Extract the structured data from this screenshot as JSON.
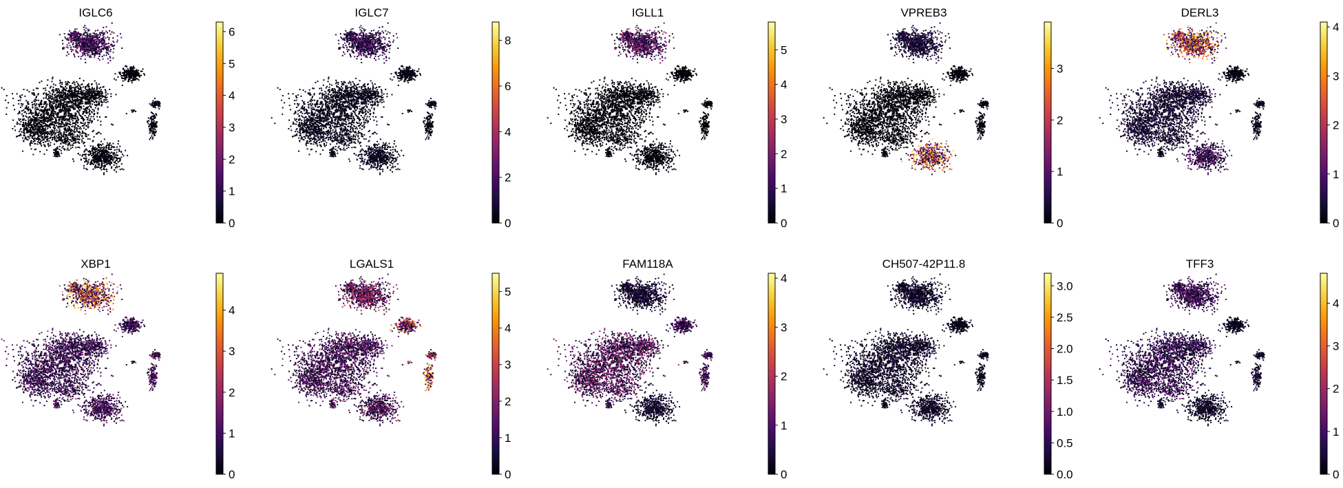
{
  "figure": {
    "title": ""
  },
  "colormap": {
    "name": "inferno",
    "stops": [
      "#000004",
      "#1b0c41",
      "#4a0c6b",
      "#781c6d",
      "#a52c60",
      "#cf4446",
      "#ed6925",
      "#fb9b06",
      "#f7d13d",
      "#fcffa4"
    ]
  },
  "chart_data": [
    {
      "type": "scatter",
      "title": "IGLC6",
      "cluster_levels": {
        "top": 1.6,
        "right": 0.15,
        "mid_right": 0.2,
        "lower_right": 0.2,
        "bottom": 0.15,
        "left_main": 0.12,
        "left_small": 0.1
      },
      "colorbar": {
        "vmin": 0,
        "vmax": 6.3,
        "ticks": [
          0,
          1,
          2,
          3,
          4,
          5,
          6
        ],
        "tick_labels": [
          "0",
          "1",
          "2",
          "3",
          "4",
          "5",
          "6"
        ]
      }
    },
    {
      "type": "scatter",
      "title": "IGLC7",
      "cluster_levels": {
        "top": 1.9,
        "right": 0.4,
        "mid_right": 0.5,
        "lower_right": 0.4,
        "bottom": 0.6,
        "left_main": 0.5,
        "left_small": 0.4
      },
      "colorbar": {
        "vmin": 0,
        "vmax": 8.8,
        "ticks": [
          0,
          2,
          4,
          6,
          8
        ],
        "tick_labels": [
          "0",
          "2",
          "4",
          "6",
          "8"
        ]
      }
    },
    {
      "type": "scatter",
      "title": "IGLL1",
      "cluster_levels": {
        "top": 1.8,
        "right": 0.1,
        "mid_right": 0.1,
        "lower_right": 0.1,
        "bottom": 0.15,
        "left_main": 0.1,
        "left_small": 0.1
      },
      "colorbar": {
        "vmin": 0,
        "vmax": 5.8,
        "ticks": [
          0,
          1,
          2,
          3,
          4,
          5
        ],
        "tick_labels": [
          "0",
          "1",
          "2",
          "3",
          "4",
          "5"
        ]
      }
    },
    {
      "type": "scatter",
      "title": "VPREB3",
      "cluster_levels": {
        "top": 0.5,
        "right": 0.1,
        "mid_right": 0.1,
        "lower_right": 0.1,
        "bottom": 2.7,
        "left_main": 0.08,
        "left_small": 0.1
      },
      "colorbar": {
        "vmin": 0,
        "vmax": 3.9,
        "ticks": [
          0,
          1,
          2,
          3
        ],
        "tick_labels": [
          "0",
          "1",
          "2",
          "3"
        ]
      }
    },
    {
      "type": "scatter",
      "title": "DERL3",
      "cluster_levels": {
        "top": 2.8,
        "right": 0.2,
        "mid_right": 0.3,
        "lower_right": 0.3,
        "bottom": 1.1,
        "left_main": 0.5,
        "left_small": 0.3
      },
      "colorbar": {
        "vmin": 0,
        "vmax": 4.1,
        "ticks": [
          0,
          1,
          2,
          3,
          4
        ],
        "tick_labels": [
          "0",
          "1",
          "2",
          "3",
          "4"
        ]
      }
    },
    {
      "type": "scatter",
      "title": "XBP1",
      "cluster_levels": {
        "top": 3.4,
        "right": 1.3,
        "mid_right": 1.4,
        "lower_right": 1.4,
        "bottom": 1.3,
        "left_main": 1.2,
        "left_small": 1.4
      },
      "colorbar": {
        "vmin": 0,
        "vmax": 4.9,
        "ticks": [
          0,
          1,
          2,
          3,
          4
        ],
        "tick_labels": [
          "0",
          "1",
          "2",
          "3",
          "4"
        ]
      }
    },
    {
      "type": "scatter",
      "title": "LGALS1",
      "cluster_levels": {
        "top": 2.1,
        "right": 3.0,
        "mid_right": 3.0,
        "lower_right": 3.8,
        "bottom": 1.7,
        "left_main": 1.5,
        "left_small": 2.0
      },
      "colorbar": {
        "vmin": 0,
        "vmax": 5.5,
        "ticks": [
          0,
          1,
          2,
          3,
          4,
          5
        ],
        "tick_labels": [
          "0",
          "1",
          "2",
          "3",
          "4",
          "5"
        ]
      }
    },
    {
      "type": "scatter",
      "title": "FAM118A",
      "cluster_levels": {
        "top": 0.5,
        "right": 1.0,
        "mid_right": 0.9,
        "lower_right": 1.1,
        "bottom": 0.4,
        "left_main": 1.3,
        "left_small": 1.0
      },
      "colorbar": {
        "vmin": 0,
        "vmax": 4.1,
        "ticks": [
          0,
          1,
          2,
          3,
          4
        ],
        "tick_labels": [
          "0",
          "1",
          "2",
          "3",
          "4"
        ]
      }
    },
    {
      "type": "scatter",
      "title": "CH507-42P11.8",
      "cluster_levels": {
        "top": 0.3,
        "right": 0.2,
        "mid_right": 0.2,
        "lower_right": 0.2,
        "bottom": 0.3,
        "left_main": 0.3,
        "left_small": 0.2
      },
      "colorbar": {
        "vmin": 0,
        "vmax": 3.2,
        "ticks": [
          0,
          0.5,
          1,
          1.5,
          2,
          2.5,
          3
        ],
        "tick_labels": [
          "0.0",
          "0.5",
          "1.0",
          "1.5",
          "2.0",
          "2.5",
          "3.0"
        ]
      }
    },
    {
      "type": "scatter",
      "title": "TFF3",
      "cluster_levels": {
        "top": 1.2,
        "right": 0.4,
        "mid_right": 0.6,
        "lower_right": 0.5,
        "bottom": 0.4,
        "left_main": 1.0,
        "left_small": 0.6
      },
      "colorbar": {
        "vmin": 0,
        "vmax": 4.7,
        "ticks": [
          0,
          1,
          2,
          3,
          4
        ],
        "tick_labels": [
          "0",
          "1",
          "2",
          "3",
          "4"
        ]
      }
    }
  ]
}
